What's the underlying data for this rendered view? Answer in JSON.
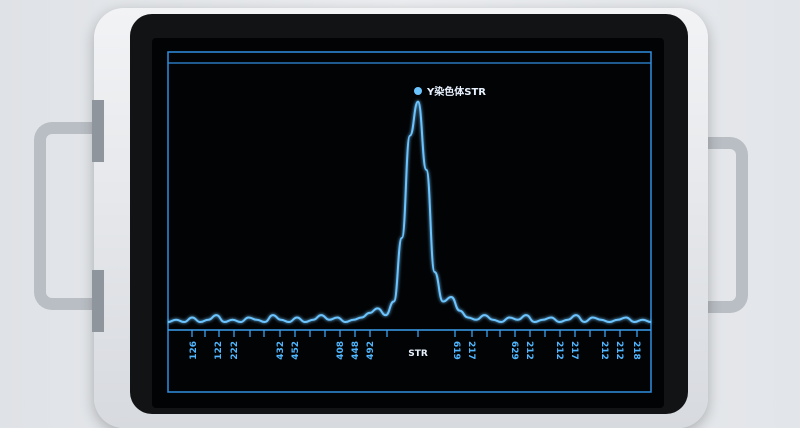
{
  "device": {
    "accent_color": "#4fb6ff",
    "frame_color": "#2f8fe0"
  },
  "chart_data": {
    "type": "line",
    "title": "",
    "peak_label": "Y染色体STR",
    "peak_category": "STR",
    "x_tick_labels": [
      "126",
      "122",
      "222",
      "432",
      "452",
      "408",
      "448",
      "492",
      "STR",
      "619",
      "217",
      "629",
      "212",
      "212",
      "217",
      "212",
      "212",
      "218"
    ],
    "signal": [
      3,
      4,
      3,
      5,
      3,
      4,
      6,
      3,
      4,
      3,
      5,
      4,
      3,
      6,
      4,
      3,
      5,
      3,
      4,
      6,
      4,
      5,
      3,
      4,
      5,
      7,
      9,
      6,
      12,
      40,
      85,
      100,
      70,
      25,
      12,
      14,
      8,
      5,
      4,
      6,
      4,
      3,
      5,
      4,
      6,
      3,
      4,
      5,
      3,
      4,
      6,
      3,
      5,
      4,
      3,
      4,
      5,
      3,
      4,
      3
    ],
    "ylim": [
      0,
      105
    ],
    "grid": false
  }
}
